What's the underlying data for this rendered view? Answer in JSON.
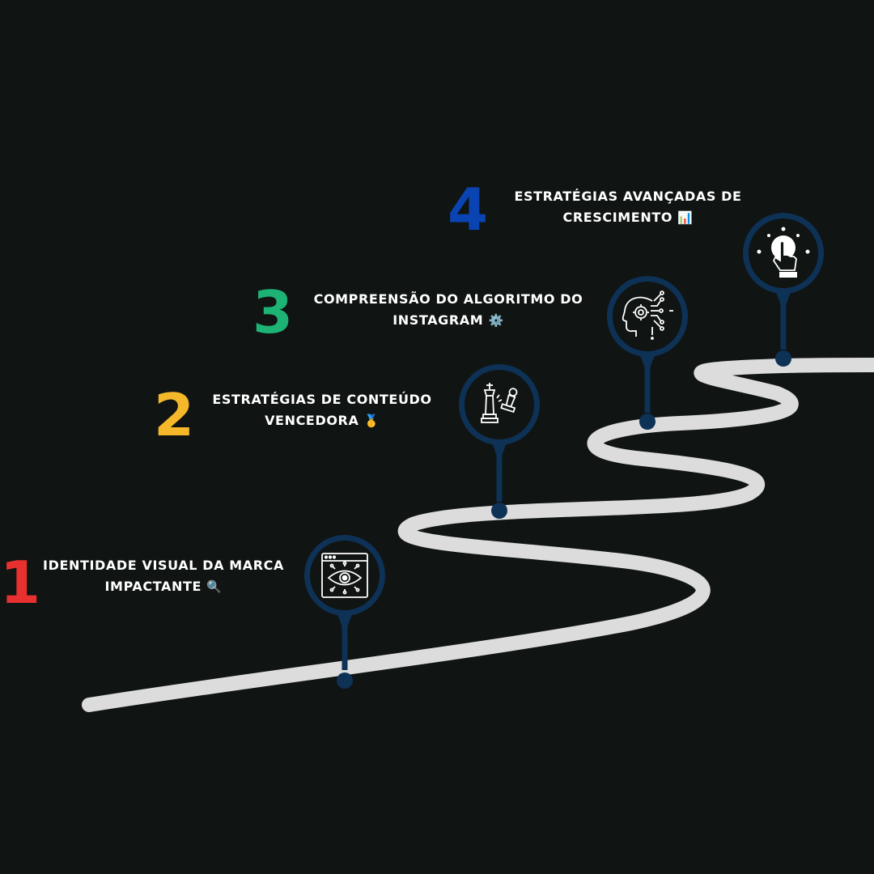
{
  "colors": {
    "background": "#101413",
    "road": "#dcdcdc",
    "pin": "#0e3156",
    "pin_inner": "#101413",
    "icon": "#ffffff",
    "step1": "#e8312f",
    "step2": "#f5b82a",
    "step3": "#1db375",
    "step4": "#0a44b3"
  },
  "steps": [
    {
      "number": "1",
      "title_line1": "IDENTIDADE VISUAL DA MARCA",
      "title_line2": "IMPACTANTE",
      "emoji": "🔍",
      "icon": "eye-browser-icon"
    },
    {
      "number": "2",
      "title_line1": "ESTRATÉGIAS DE CONTEÚDO",
      "title_line2": "VENCEDORA",
      "emoji": "🥇",
      "icon": "chess-pieces-icon"
    },
    {
      "number": "3",
      "title_line1": "COMPREENSÃO DO ALGORITMO DO",
      "title_line2": "INSTAGRAM",
      "emoji": "⚙️",
      "icon": "ai-brain-icon"
    },
    {
      "number": "4",
      "title_line1": "ESTRATÉGIAS AVANÇADAS DE",
      "title_line2": "CRESCIMENTO",
      "emoji": "📊",
      "icon": "hand-click-icon"
    }
  ]
}
